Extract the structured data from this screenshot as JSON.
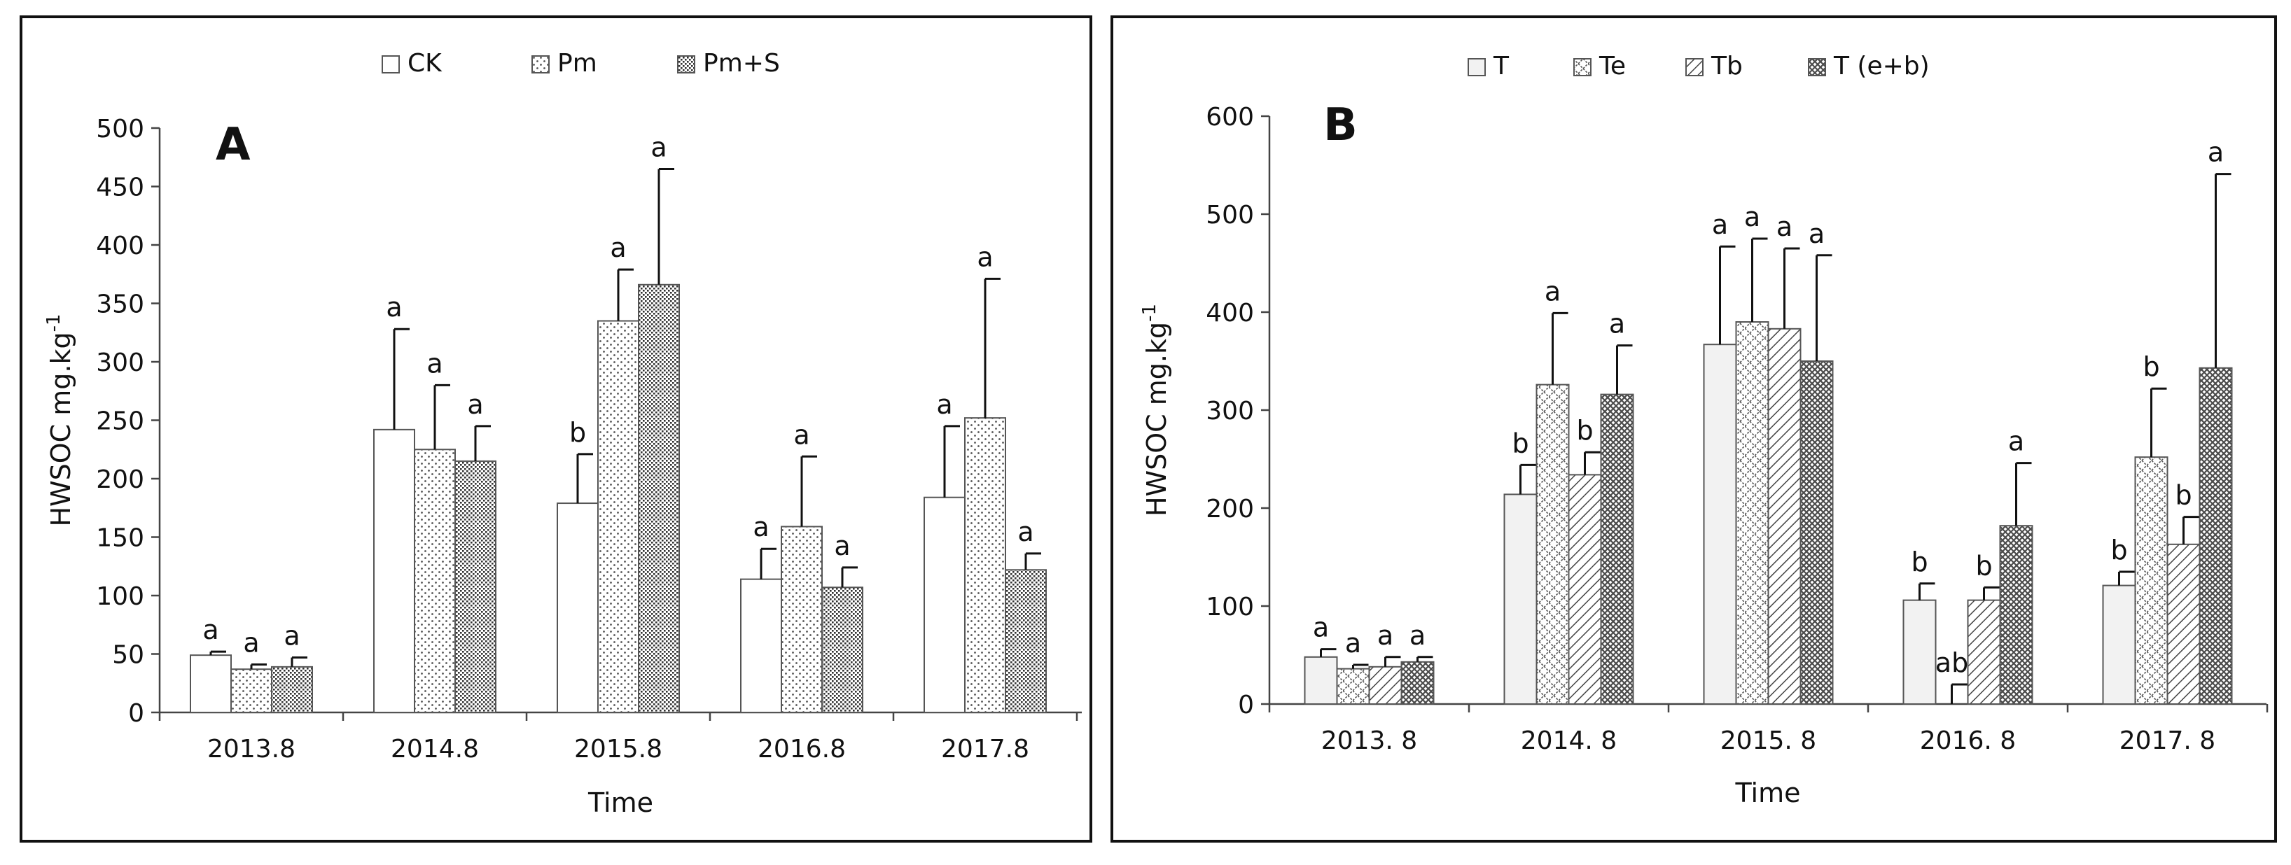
{
  "patterns": {
    "dots": "#555555",
    "fine": "#333333",
    "diag_back": "#444444",
    "diag_fwd": "#444444",
    "cross": "#4a4a4a",
    "bar_stroke": "#555555",
    "light_fill": "#f2f2f2"
  },
  "chart_data": [
    {
      "type": "bar",
      "panel_label": "A",
      "xlabel": "Time",
      "ylabel": "HWSOC  mg.kg",
      "ylabel_sup": "-1",
      "ylim": [
        0,
        500
      ],
      "yticks": [
        0,
        50,
        100,
        150,
        200,
        250,
        300,
        350,
        400,
        450,
        500
      ],
      "categories": [
        "2013.8",
        "2014.8",
        "2015.8",
        "2016.8",
        "2017.8"
      ],
      "legend_position": "top-center",
      "grid": false,
      "series": [
        {
          "name": "CK",
          "pattern": "white",
          "values": [
            49,
            242,
            179,
            114,
            184
          ],
          "errors": [
            3,
            86,
            42,
            26,
            61
          ],
          "labels": [
            "a",
            "a",
            "b",
            "a",
            "a"
          ]
        },
        {
          "name": "Pm",
          "pattern": "dots",
          "values": [
            37,
            225,
            335,
            159,
            252
          ],
          "errors": [
            4,
            55,
            44,
            60,
            119
          ],
          "labels": [
            "a",
            "a",
            "a",
            "a",
            "a"
          ]
        },
        {
          "name": "Pm+S",
          "pattern": "fine",
          "values": [
            39,
            215,
            366,
            107,
            122
          ],
          "errors": [
            8,
            30,
            99,
            17,
            14
          ],
          "labels": [
            "a",
            "a",
            "a",
            "a",
            "a"
          ]
        }
      ]
    },
    {
      "type": "bar",
      "panel_label": "B",
      "xlabel": "Time",
      "ylabel": "HWSOC  mg.kg",
      "ylabel_sup": "-1",
      "ylim": [
        0,
        600
      ],
      "yticks": [
        0,
        100,
        200,
        300,
        400,
        500,
        600
      ],
      "categories": [
        "2013. 8",
        "2014. 8",
        "2015. 8",
        "2016. 8",
        "2017. 8"
      ],
      "legend_position": "top-center",
      "grid": false,
      "series": [
        {
          "name": "T",
          "pattern": "light",
          "values": [
            48,
            214,
            367,
            106,
            121
          ],
          "errors": [
            8,
            30,
            100,
            17,
            14
          ],
          "labels": [
            "a",
            "b",
            "a",
            "b",
            "b"
          ]
        },
        {
          "name": "Te",
          "pattern": "diamond",
          "values": [
            36,
            326,
            390,
            0,
            252
          ],
          "errors": [
            4,
            73,
            85,
            20,
            70
          ],
          "labels": [
            "a",
            "a",
            "a",
            "ab",
            "b"
          ]
        },
        {
          "name": "Tb",
          "pattern": "diag",
          "values": [
            38,
            234,
            383,
            106,
            163
          ],
          "errors": [
            10,
            23,
            82,
            13,
            28
          ],
          "labels": [
            "a",
            "b",
            "a",
            "b",
            "b"
          ]
        },
        {
          "name": "T (e+b)",
          "pattern": "cross",
          "values": [
            43,
            316,
            350,
            182,
            343
          ],
          "errors": [
            5,
            50,
            108,
            64,
            198
          ],
          "labels": [
            "a",
            "a",
            "a",
            "a",
            "a"
          ]
        }
      ]
    }
  ]
}
